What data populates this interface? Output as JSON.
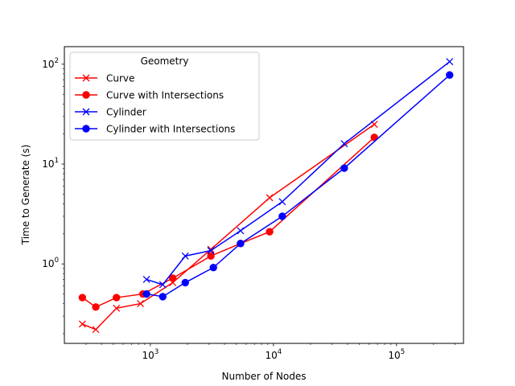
{
  "chart_data": {
    "type": "line",
    "xlabel": "Number of Nodes",
    "ylabel": "Time to Generate (s)",
    "xscale": "log",
    "yscale": "log",
    "xlim": [
      200,
      350000
    ],
    "ylim": [
      0.16,
      150
    ],
    "grid": false,
    "legend": {
      "title": "Geometry",
      "position": "top-left"
    },
    "xticks": [
      {
        "value": 1000,
        "base": "10",
        "exp": "3"
      },
      {
        "value": 10000,
        "base": "10",
        "exp": "4"
      },
      {
        "value": 100000,
        "base": "10",
        "exp": "5"
      }
    ],
    "yticks": [
      {
        "value": 1,
        "base": "10",
        "exp": "0"
      },
      {
        "value": 10,
        "base": "10",
        "exp": "1"
      },
      {
        "value": 100,
        "base": "10",
        "exp": "2"
      }
    ],
    "series": [
      {
        "name": "Curve",
        "color": "#ff0000",
        "marker": "x",
        "x": [
          280,
          360,
          530,
          830,
          1520,
          3100,
          9300,
          66000
        ],
        "y": [
          0.25,
          0.22,
          0.36,
          0.4,
          0.65,
          1.4,
          4.6,
          25
        ]
      },
      {
        "name": "Curve with Intersections",
        "color": "#ff0000",
        "marker": "o",
        "x": [
          280,
          360,
          530,
          870,
          1520,
          3100,
          5400,
          9300,
          66000
        ],
        "y": [
          0.46,
          0.37,
          0.46,
          0.5,
          0.72,
          1.2,
          1.6,
          2.1,
          18.5
        ]
      },
      {
        "name": "Cylinder",
        "color": "#0000ff",
        "marker": "x",
        "x": [
          930,
          1260,
          1920,
          3100,
          5400,
          11800,
          37600,
          270000
        ],
        "y": [
          0.7,
          0.62,
          1.2,
          1.36,
          2.15,
          4.2,
          16,
          106
        ]
      },
      {
        "name": "Cylinder with Intersections",
        "color": "#0000ff",
        "marker": "o",
        "x": [
          930,
          1260,
          1920,
          3250,
          5400,
          11800,
          37600,
          270000
        ],
        "y": [
          0.5,
          0.47,
          0.65,
          0.92,
          1.6,
          3.0,
          9.1,
          78
        ]
      }
    ]
  }
}
